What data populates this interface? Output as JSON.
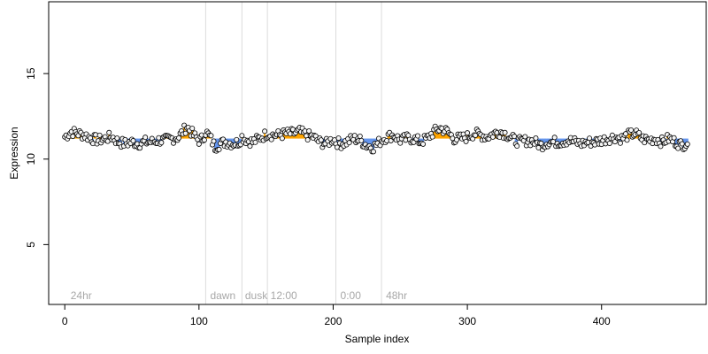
{
  "chart_data": {
    "type": "scatter",
    "title": "",
    "xlabel": "Sample index",
    "ylabel": "Expression",
    "xlim": [
      -12,
      478
    ],
    "ylim": [
      1.5,
      19.2
    ],
    "x_ticks": [
      0,
      100,
      200,
      300,
      400
    ],
    "y_ticks": [
      5,
      10,
      15
    ],
    "grid": false,
    "legend": "none",
    "colors": {
      "point_fill": "#f5f5f5",
      "point_stroke": "#000000",
      "above_segment": "#ffa500",
      "below_segment": "#6495ed",
      "boundary_line": "#dcdcdc",
      "phase_label": "#a8a8a8"
    },
    "baseline": 11.2,
    "phase_boundaries": [
      105,
      132,
      151,
      202,
      236
    ],
    "phase_labels": [
      {
        "x": 3,
        "label": "24hr"
      },
      {
        "x": 107,
        "label": "dawn"
      },
      {
        "x": 133,
        "label": "dusk"
      },
      {
        "x": 152,
        "label": "12:00"
      },
      {
        "x": 204,
        "label": "0:00"
      },
      {
        "x": 238,
        "label": "48hr"
      }
    ],
    "series": [
      {
        "points_per_anchor": 1,
        "anchors_x": [
          0,
          5,
          10,
          15,
          20,
          25,
          30,
          35,
          40,
          45,
          50,
          55,
          60,
          65,
          70,
          75,
          80,
          85,
          88,
          91,
          94,
          97,
          100,
          103,
          105,
          108,
          112,
          116,
          120,
          125,
          130,
          132,
          136,
          140,
          145,
          151,
          155,
          160,
          165,
          170,
          175,
          180,
          185,
          190,
          195,
          200,
          202,
          206,
          210,
          215,
          220,
          225,
          230,
          236,
          240,
          245,
          250,
          255,
          260,
          265,
          270,
          275,
          280,
          285,
          290,
          295,
          300,
          305,
          310,
          315,
          320,
          325,
          330,
          335,
          340,
          345,
          350,
          355,
          360,
          365,
          370,
          375,
          380,
          385,
          390,
          395,
          400,
          405,
          410,
          415,
          420,
          425,
          430,
          435,
          440,
          445,
          450,
          455,
          460,
          464
        ],
        "anchors_y": [
          11.3,
          11.6,
          11.5,
          11.4,
          11.2,
          11.1,
          11.2,
          11.3,
          11.0,
          10.9,
          11.0,
          10.9,
          11.0,
          11.0,
          11.1,
          11.1,
          11.2,
          11.3,
          11.6,
          11.9,
          11.6,
          11.3,
          11.1,
          11.2,
          11.6,
          11.3,
          10.7,
          10.9,
          11.0,
          10.9,
          11.0,
          11.3,
          11.1,
          11.0,
          11.2,
          11.5,
          11.4,
          11.4,
          11.5,
          11.5,
          11.6,
          11.4,
          11.3,
          11.0,
          10.9,
          11.2,
          11.0,
          10.9,
          11.0,
          11.2,
          11.1,
          10.8,
          10.7,
          11.1,
          11.3,
          11.4,
          11.1,
          11.2,
          11.2,
          11.0,
          11.2,
          11.6,
          11.8,
          11.6,
          11.2,
          11.2,
          11.3,
          11.5,
          11.4,
          11.3,
          11.5,
          11.6,
          11.4,
          11.1,
          11.0,
          11.1,
          11.0,
          10.8,
          11.0,
          11.0,
          11.0,
          11.1,
          11.0,
          10.9,
          11.0,
          11.0,
          11.1,
          11.2,
          11.3,
          11.2,
          11.4,
          11.5,
          11.2,
          11.1,
          11.2,
          11.0,
          11.2,
          11.0,
          10.8,
          11.0
        ]
      }
    ]
  }
}
